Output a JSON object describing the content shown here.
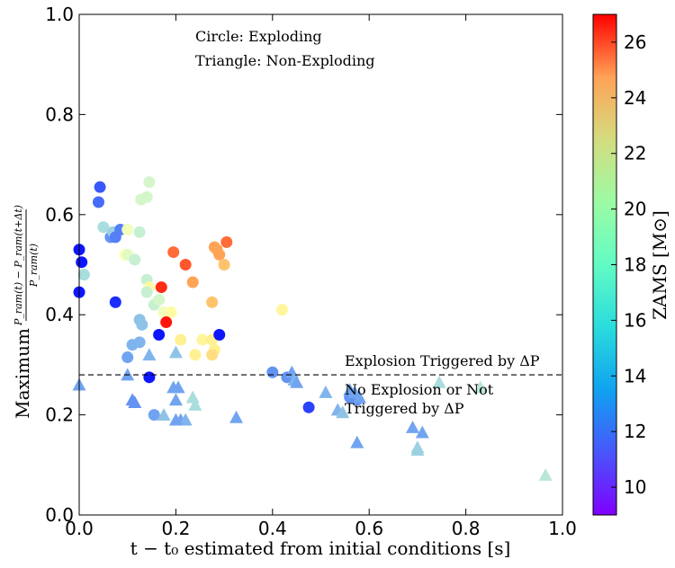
{
  "chart_data": {
    "type": "scatter",
    "xlabel": "t − t₀ estimated from initial conditions [s]",
    "ylabel_main": "Maximum",
    "ylabel_numerator": "P_ram(t) − P_ram(t+Δt)",
    "ylabel_denominator": "P_ram(t)",
    "xlim": [
      0.0,
      1.0
    ],
    "ylim": [
      0.0,
      1.0
    ],
    "x_ticks": [
      "0.0",
      "0.2",
      "0.4",
      "0.6",
      "0.8",
      "1.0"
    ],
    "y_ticks": [
      "0.0",
      "0.2",
      "0.4",
      "0.6",
      "0.8",
      "1.0"
    ],
    "legend_text": [
      "Circle: Exploding",
      "Triangle: Non-Exploding"
    ],
    "threshold": 0.28,
    "threshold_label_above": "Explosion Triggered by ΔP",
    "threshold_label_below": [
      "No Explosion or Not",
      "Triggered by ΔP"
    ],
    "colorbar": {
      "label": "ZAMS [M⊙]",
      "range": [
        9,
        27
      ],
      "ticks": [
        "10",
        "12",
        "14",
        "16",
        "18",
        "20",
        "22",
        "24",
        "26"
      ]
    },
    "series": [
      {
        "marker": "circle",
        "points": [
          [
            0.0,
            0.53,
            9.5
          ],
          [
            0.005,
            0.505,
            9.5
          ],
          [
            0.0,
            0.445,
            9.5
          ],
          [
            0.01,
            0.48,
            15
          ],
          [
            0.04,
            0.625,
            11.5
          ],
          [
            0.043,
            0.655,
            11
          ],
          [
            0.05,
            0.575,
            15
          ],
          [
            0.065,
            0.555,
            12.5
          ],
          [
            0.07,
            0.565,
            14.5
          ],
          [
            0.075,
            0.555,
            12
          ],
          [
            0.085,
            0.57,
            12
          ],
          [
            0.075,
            0.425,
            10
          ],
          [
            0.095,
            0.52,
            18
          ],
          [
            0.1,
            0.52,
            17
          ],
          [
            0.1,
            0.57,
            17.5
          ],
          [
            0.115,
            0.51,
            16
          ],
          [
            0.125,
            0.565,
            16
          ],
          [
            0.128,
            0.63,
            16.5
          ],
          [
            0.14,
            0.635,
            16.5
          ],
          [
            0.145,
            0.665,
            16.5
          ],
          [
            0.14,
            0.47,
            16
          ],
          [
            0.145,
            0.455,
            19
          ],
          [
            0.14,
            0.445,
            16
          ],
          [
            0.155,
            0.42,
            16
          ],
          [
            0.165,
            0.43,
            16.5
          ],
          [
            0.175,
            0.405,
            17.5
          ],
          [
            0.19,
            0.405,
            19
          ],
          [
            0.17,
            0.455,
            26
          ],
          [
            0.18,
            0.385,
            26.5
          ],
          [
            0.165,
            0.36,
            9.5
          ],
          [
            0.145,
            0.275,
            9.5
          ],
          [
            0.125,
            0.39,
            14
          ],
          [
            0.13,
            0.38,
            14
          ],
          [
            0.125,
            0.345,
            13.5
          ],
          [
            0.11,
            0.34,
            13.5
          ],
          [
            0.1,
            0.315,
            13
          ],
          [
            0.155,
            0.2,
            13
          ],
          [
            0.195,
            0.525,
            24.5
          ],
          [
            0.22,
            0.5,
            25
          ],
          [
            0.235,
            0.465,
            23
          ],
          [
            0.21,
            0.35,
            20
          ],
          [
            0.24,
            0.32,
            20
          ],
          [
            0.255,
            0.35,
            19.5
          ],
          [
            0.275,
            0.35,
            20
          ],
          [
            0.28,
            0.33,
            20
          ],
          [
            0.275,
            0.32,
            21
          ],
          [
            0.275,
            0.425,
            22
          ],
          [
            0.28,
            0.535,
            23
          ],
          [
            0.285,
            0.53,
            23
          ],
          [
            0.29,
            0.52,
            23
          ],
          [
            0.3,
            0.5,
            22
          ],
          [
            0.305,
            0.545,
            24.5
          ],
          [
            0.29,
            0.36,
            9.5
          ],
          [
            0.42,
            0.41,
            19.5
          ],
          [
            0.4,
            0.285,
            12.5
          ],
          [
            0.43,
            0.275,
            12.5
          ],
          [
            0.475,
            0.215,
            10.5
          ],
          [
            0.56,
            0.235,
            12.5
          ],
          [
            0.575,
            0.23,
            12.5
          ]
        ]
      },
      {
        "marker": "triangle",
        "points": [
          [
            0.0,
            0.26,
            13
          ],
          [
            0.1,
            0.28,
            13
          ],
          [
            0.11,
            0.23,
            12.5
          ],
          [
            0.115,
            0.225,
            12.5
          ],
          [
            0.145,
            0.32,
            13.5
          ],
          [
            0.175,
            0.2,
            14
          ],
          [
            0.2,
            0.325,
            14
          ],
          [
            0.195,
            0.255,
            13
          ],
          [
            0.2,
            0.23,
            13
          ],
          [
            0.205,
            0.255,
            13
          ],
          [
            0.21,
            0.19,
            13
          ],
          [
            0.22,
            0.19,
            13.5
          ],
          [
            0.235,
            0.235,
            15
          ],
          [
            0.24,
            0.22,
            15
          ],
          [
            0.2,
            0.19,
            13
          ],
          [
            0.325,
            0.195,
            13
          ],
          [
            0.44,
            0.285,
            13
          ],
          [
            0.445,
            0.27,
            13.5
          ],
          [
            0.45,
            0.265,
            13
          ],
          [
            0.51,
            0.245,
            13.5
          ],
          [
            0.535,
            0.21,
            13.5
          ],
          [
            0.545,
            0.205,
            14
          ],
          [
            0.56,
            0.25,
            13
          ],
          [
            0.57,
            0.245,
            13
          ],
          [
            0.575,
            0.145,
            13
          ],
          [
            0.58,
            0.235,
            13
          ],
          [
            0.69,
            0.175,
            13
          ],
          [
            0.7,
            0.13,
            14.5
          ],
          [
            0.7,
            0.135,
            14.5
          ],
          [
            0.71,
            0.165,
            13
          ],
          [
            0.745,
            0.265,
            15
          ],
          [
            0.83,
            0.255,
            15.5
          ],
          [
            0.965,
            0.08,
            15.5
          ]
        ]
      }
    ]
  }
}
